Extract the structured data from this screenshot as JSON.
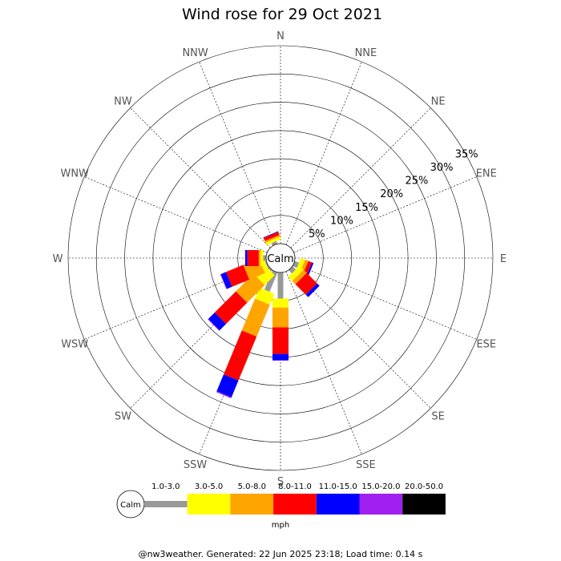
{
  "chart_data": {
    "type": "wind-rose",
    "title": "Wind rose for 29 Oct 2021",
    "calm_label": "Calm",
    "directions": [
      "N",
      "NNE",
      "NE",
      "ENE",
      "E",
      "ESE",
      "SE",
      "SSE",
      "S",
      "SSW",
      "SW",
      "WSW",
      "W",
      "WNW",
      "NW",
      "NNW"
    ],
    "ring_labels": [
      "5%",
      "10%",
      "15%",
      "20%",
      "25%",
      "30%",
      "35%"
    ],
    "ring_values": [
      5,
      10,
      15,
      20,
      25,
      30,
      35
    ],
    "radial_max": 35,
    "speed_bins": [
      {
        "label": "1.0-3.0",
        "color": "#999999"
      },
      {
        "label": "3.0-5.0",
        "color": "#ffff00"
      },
      {
        "label": "5.0-8.0",
        "color": "#ffa500"
      },
      {
        "label": "8.0-11.0",
        "color": "#ff0000"
      },
      {
        "label": "11.0-15.0",
        "color": "#0000ff"
      },
      {
        "label": "15.0-20.0",
        "color": "#a020f0"
      },
      {
        "label": "20.0-50.0",
        "color": "#000000"
      }
    ],
    "unit": "mph",
    "series": [
      {
        "direction": "NNW",
        "values": [
          0.5,
          0.5,
          0.3,
          0.6,
          0.1,
          0,
          0
        ]
      },
      {
        "direction": "ESE",
        "values": [
          0.8,
          0.8,
          0.6,
          0.7,
          0.3,
          0,
          0
        ]
      },
      {
        "direction": "SE",
        "values": [
          0.8,
          1.0,
          0.8,
          2.6,
          0.6,
          0,
          0
        ]
      },
      {
        "direction": "S",
        "values": [
          4.6,
          1.6,
          3.5,
          4.7,
          1.1,
          0.1,
          0
        ]
      },
      {
        "direction": "SSW",
        "values": [
          3.7,
          2.1,
          6.1,
          8.4,
          3.2,
          0.2,
          0
        ]
      },
      {
        "direction": "SW",
        "values": [
          0.3,
          2.5,
          4.4,
          5.3,
          1.6,
          0.1,
          0
        ]
      },
      {
        "direction": "WSW",
        "values": [
          0.2,
          0.8,
          3.0,
          3.3,
          1.0,
          0.1,
          0
        ]
      },
      {
        "direction": "W",
        "values": [
          0.5,
          0.5,
          0.3,
          2.0,
          0.4,
          0,
          0
        ]
      }
    ]
  },
  "footer": "@nw3weather. Generated: 22 Jun 2025 23:18; Load time: 0.14 s"
}
